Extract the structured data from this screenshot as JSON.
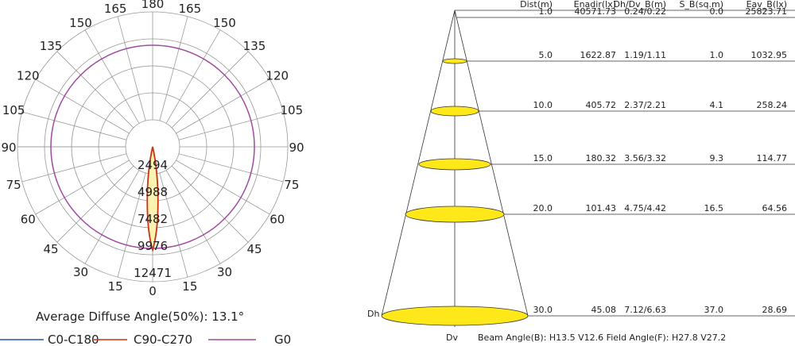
{
  "polar": {
    "angle_labels": [
      "0",
      "15",
      "30",
      "45",
      "60",
      "75",
      "90",
      "105",
      "120",
      "135",
      "150",
      "165",
      "180"
    ],
    "radial_labels": [
      "2494",
      "4988",
      "7482",
      "9976",
      "12471"
    ],
    "summary": "Average Diffuse Angle(50%): 13.1°",
    "legend": [
      "C0-C180",
      "C90-C270",
      "G0"
    ]
  },
  "cone": {
    "headers": [
      "Dist(m)",
      "Enadir(lx)",
      "Dh/Dv_B(m)",
      "S_B(sq.m)",
      "Eav_B(lx)"
    ],
    "rows": [
      [
        "1.0",
        "40571.73",
        "0.24/0.22",
        "0.0",
        "25823.71"
      ],
      [
        "5.0",
        "1622.87",
        "1.19/1.11",
        "1.0",
        "1032.95"
      ],
      [
        "10.0",
        "405.72",
        "2.37/2.21",
        "4.1",
        "258.24"
      ],
      [
        "15.0",
        "180.32",
        "3.56/3.32",
        "9.3",
        "114.77"
      ],
      [
        "20.0",
        "101.43",
        "4.75/4.42",
        "16.5",
        "64.56"
      ],
      [
        "30.0",
        "45.08",
        "7.12/6.63",
        "37.0",
        "28.69"
      ]
    ],
    "dh": "Dh",
    "dv": "Dv",
    "footer": "Beam Angle(B): H13.5 V12.6  Field Angle(F): H27.8 V27.2"
  }
}
